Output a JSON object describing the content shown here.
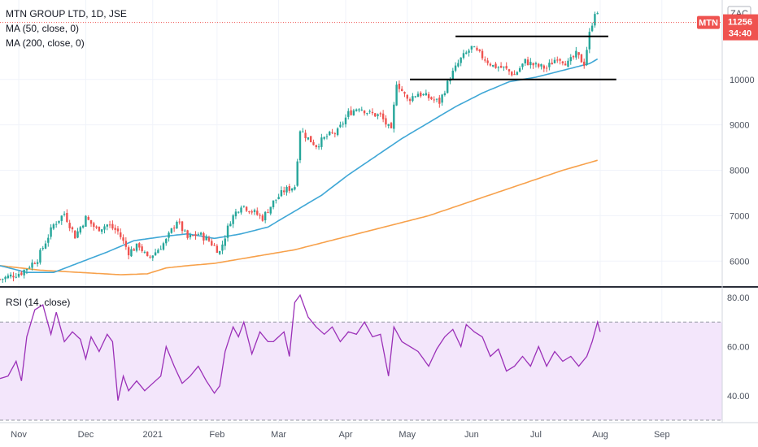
{
  "header": {
    "symbol_line": "MTN GROUP LTD, 1D, JSE",
    "ma50_label": "MA (50, close, 0)",
    "ma200_label": "MA (200, close, 0)",
    "rsi_label": "RSI (14, close)"
  },
  "price_axis": {
    "currency": "ZAC",
    "ticker_badge": "MTN",
    "last_price": "11256",
    "countdown": "34:40"
  },
  "colors": {
    "up": "#26a69a",
    "down": "#ef5350",
    "ma50": "#3fa7d6",
    "ma200": "#f7a14b",
    "rsi_line": "#9b30b8",
    "rsi_band": "#f3e6fb",
    "trendline": "#000000"
  },
  "chart_data": [
    {
      "type": "candlestick",
      "title": "MTN GROUP LTD, 1D, JSE",
      "x_tick_labels": [
        "Nov",
        "Dec",
        "2021",
        "Feb",
        "Mar",
        "Apr",
        "May",
        "Jun",
        "Jul",
        "Aug",
        "Sep"
      ],
      "y_tick_labels": [
        "6000",
        "7000",
        "8000",
        "9000",
        "10000"
      ],
      "ylim": [
        5450,
        11750
      ],
      "anchors": [
        [
          0,
          5600
        ],
        [
          8,
          5750
        ],
        [
          14,
          6050
        ],
        [
          20,
          6800
        ],
        [
          24,
          7050
        ],
        [
          28,
          6550
        ],
        [
          32,
          6950
        ],
        [
          36,
          6700
        ],
        [
          40,
          6800
        ],
        [
          44,
          6650
        ],
        [
          48,
          6200
        ],
        [
          52,
          6350
        ],
        [
          55,
          6050
        ],
        [
          58,
          6200
        ],
        [
          62,
          6450
        ],
        [
          66,
          6900
        ],
        [
          70,
          6500
        ],
        [
          74,
          6600
        ],
        [
          78,
          6450
        ],
        [
          82,
          6200
        ],
        [
          86,
          6900
        ],
        [
          90,
          7250
        ],
        [
          94,
          7100
        ],
        [
          98,
          6950
        ],
        [
          102,
          7300
        ],
        [
          106,
          7550
        ],
        [
          110,
          7650
        ],
        [
          112,
          8900
        ],
        [
          115,
          8700
        ],
        [
          118,
          8550
        ],
        [
          122,
          8750
        ],
        [
          126,
          8850
        ],
        [
          130,
          9250
        ],
        [
          134,
          9400
        ],
        [
          138,
          9250
        ],
        [
          142,
          9200
        ],
        [
          146,
          8850
        ],
        [
          148,
          9950
        ],
        [
          152,
          9550
        ],
        [
          156,
          9700
        ],
        [
          160,
          9600
        ],
        [
          164,
          9500
        ],
        [
          168,
          10050
        ],
        [
          172,
          10450
        ],
        [
          176,
          10700
        ],
        [
          180,
          10500
        ],
        [
          184,
          10300
        ],
        [
          188,
          10250
        ],
        [
          192,
          10100
        ],
        [
          196,
          10400
        ],
        [
          200,
          10300
        ],
        [
          204,
          10250
        ],
        [
          208,
          10500
        ],
        [
          212,
          10350
        ],
        [
          215,
          10550
        ],
        [
          218,
          10350
        ],
        [
          220,
          11000
        ],
        [
          222,
          11500
        ],
        [
          223,
          11400
        ]
      ],
      "ma50": [
        [
          0,
          5900
        ],
        [
          10,
          5750
        ],
        [
          20,
          5750
        ],
        [
          40,
          6200
        ],
        [
          50,
          6450
        ],
        [
          62,
          6550
        ],
        [
          70,
          6600
        ],
        [
          80,
          6500
        ],
        [
          90,
          6600
        ],
        [
          100,
          6750
        ],
        [
          110,
          7100
        ],
        [
          120,
          7450
        ],
        [
          130,
          7900
        ],
        [
          140,
          8300
        ],
        [
          150,
          8700
        ],
        [
          160,
          9050
        ],
        [
          170,
          9400
        ],
        [
          180,
          9700
        ],
        [
          190,
          9950
        ],
        [
          200,
          10050
        ],
        [
          210,
          10200
        ],
        [
          220,
          10350
        ],
        [
          223,
          10450
        ]
      ],
      "ma200": [
        [
          0,
          5900
        ],
        [
          15,
          5800
        ],
        [
          30,
          5750
        ],
        [
          45,
          5700
        ],
        [
          55,
          5720
        ],
        [
          62,
          5850
        ],
        [
          70,
          5900
        ],
        [
          80,
          5950
        ],
        [
          90,
          6050
        ],
        [
          100,
          6150
        ],
        [
          110,
          6250
        ],
        [
          120,
          6400
        ],
        [
          130,
          6550
        ],
        [
          140,
          6700
        ],
        [
          150,
          6850
        ],
        [
          160,
          7000
        ],
        [
          170,
          7200
        ],
        [
          180,
          7400
        ],
        [
          190,
          7600
        ],
        [
          200,
          7800
        ],
        [
          210,
          8000
        ],
        [
          223,
          8220
        ]
      ],
      "resistance_line": {
        "from": [
          170,
          10950
        ],
        "to": [
          227,
          10950
        ]
      },
      "support_line": {
        "from": [
          153,
          10000
        ],
        "to": [
          230,
          10000
        ]
      }
    },
    {
      "type": "line",
      "title": "RSI (14, close)",
      "y_tick_labels": [
        "40.00",
        "60.00",
        "80.00"
      ],
      "ylim": [
        29,
        84
      ],
      "band": [
        30,
        70
      ],
      "values": [
        [
          0,
          47
        ],
        [
          3,
          48
        ],
        [
          6,
          54
        ],
        [
          8,
          46
        ],
        [
          10,
          64
        ],
        [
          13,
          75
        ],
        [
          16,
          77
        ],
        [
          19,
          65
        ],
        [
          21,
          74
        ],
        [
          24,
          62
        ],
        [
          27,
          66
        ],
        [
          30,
          63
        ],
        [
          32,
          55
        ],
        [
          34,
          64
        ],
        [
          37,
          58
        ],
        [
          40,
          65
        ],
        [
          42,
          62
        ],
        [
          44,
          38
        ],
        [
          46,
          48
        ],
        [
          48,
          42
        ],
        [
          51,
          46
        ],
        [
          54,
          42
        ],
        [
          57,
          45
        ],
        [
          60,
          48
        ],
        [
          62,
          60
        ],
        [
          65,
          52
        ],
        [
          68,
          45
        ],
        [
          71,
          48
        ],
        [
          74,
          52
        ],
        [
          77,
          46
        ],
        [
          80,
          41
        ],
        [
          82,
          44
        ],
        [
          84,
          58
        ],
        [
          87,
          68
        ],
        [
          89,
          64
        ],
        [
          91,
          70
        ],
        [
          94,
          57
        ],
        [
          97,
          66
        ],
        [
          100,
          62
        ],
        [
          102,
          62
        ],
        [
          104,
          64
        ],
        [
          106,
          66
        ],
        [
          108,
          56
        ],
        [
          110,
          78
        ],
        [
          112,
          81
        ],
        [
          115,
          72
        ],
        [
          118,
          68
        ],
        [
          121,
          65
        ],
        [
          124,
          68
        ],
        [
          127,
          62
        ],
        [
          130,
          66
        ],
        [
          133,
          65
        ],
        [
          136,
          70
        ],
        [
          139,
          64
        ],
        [
          142,
          65
        ],
        [
          145,
          48
        ],
        [
          147,
          68
        ],
        [
          150,
          62
        ],
        [
          153,
          60
        ],
        [
          156,
          58
        ],
        [
          160,
          52
        ],
        [
          163,
          59
        ],
        [
          166,
          64
        ],
        [
          169,
          67
        ],
        [
          172,
          60
        ],
        [
          174,
          69
        ],
        [
          177,
          66
        ],
        [
          180,
          64
        ],
        [
          183,
          56
        ],
        [
          186,
          59
        ],
        [
          189,
          50
        ],
        [
          192,
          52
        ],
        [
          195,
          56
        ],
        [
          198,
          52
        ],
        [
          201,
          60
        ],
        [
          204,
          52
        ],
        [
          207,
          58
        ],
        [
          210,
          54
        ],
        [
          213,
          56
        ],
        [
          216,
          52
        ],
        [
          219,
          56
        ],
        [
          221,
          62
        ],
        [
          223,
          70
        ],
        [
          224,
          66
        ]
      ]
    }
  ]
}
